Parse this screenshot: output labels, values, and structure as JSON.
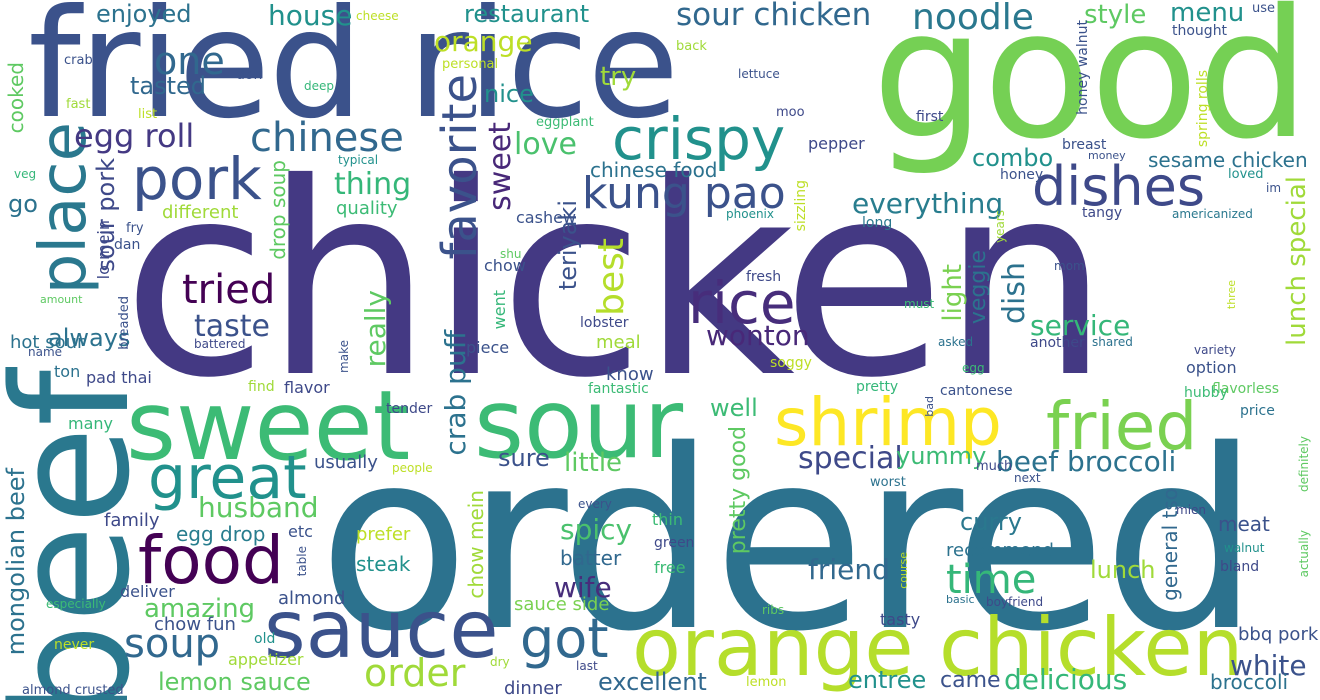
{
  "words": [
    {
      "text": "chicken",
      "color": "#443983"
    },
    {
      "text": "ordered",
      "color": "#2c728e"
    },
    {
      "text": "good",
      "color": "#75d054"
    },
    {
      "text": "fried rice",
      "color": "#3b528b"
    },
    {
      "text": "beef",
      "color": "#2a788e"
    },
    {
      "text": "sweet",
      "color": "#3cbb75"
    },
    {
      "text": "sour",
      "color": "#3cbb75"
    },
    {
      "text": "orange chicken",
      "color": "#b5de2b"
    },
    {
      "text": "sauce",
      "color": "#3b528b"
    },
    {
      "text": "shrimp",
      "color": "#fde725"
    },
    {
      "text": "fried",
      "color": "#7ad151"
    },
    {
      "text": "food",
      "color": "#440154"
    },
    {
      "text": "place",
      "color": "#2a788e"
    },
    {
      "text": "great",
      "color": "#21918c"
    },
    {
      "text": "pork",
      "color": "#3b528b"
    },
    {
      "text": "dishes",
      "color": "#3e4989"
    },
    {
      "text": "rice",
      "color": "#472d7b"
    },
    {
      "text": "crispy",
      "color": "#21918c"
    },
    {
      "text": "got",
      "color": "#31688e"
    },
    {
      "text": "kung pao",
      "color": "#3b528b"
    },
    {
      "text": "favorite",
      "color": "#3b528b"
    },
    {
      "text": "time",
      "color": "#35b779"
    },
    {
      "text": "soup",
      "color": "#31688e"
    },
    {
      "text": "order",
      "color": "#a0da39"
    },
    {
      "text": "tried",
      "color": "#440154"
    },
    {
      "text": "chinese",
      "color": "#31688e"
    },
    {
      "text": "noodle",
      "color": "#2a788e"
    },
    {
      "text": "sour chicken",
      "color": "#31688e"
    },
    {
      "text": "egg roll",
      "color": "#443983"
    },
    {
      "text": "one",
      "color": "#31688e"
    },
    {
      "text": "taste",
      "color": "#3b528b"
    },
    {
      "text": "thing",
      "color": "#35b779"
    },
    {
      "text": "best",
      "color": "#b5de2b"
    },
    {
      "text": "sweet",
      "color": "#482878"
    },
    {
      "text": "love",
      "color": "#4ac16d"
    },
    {
      "text": "service",
      "color": "#35b779"
    },
    {
      "text": "wonton",
      "color": "#482878"
    },
    {
      "text": "house",
      "color": "#21918c"
    },
    {
      "text": "restaurant",
      "color": "#21918c"
    },
    {
      "text": "orange",
      "color": "#bddf26"
    },
    {
      "text": "menu",
      "color": "#21918c"
    },
    {
      "text": "style",
      "color": "#5ec962"
    },
    {
      "text": "enjoyed",
      "color": "#2c728e"
    },
    {
      "text": "tasted",
      "color": "#31688e"
    },
    {
      "text": "try",
      "color": "#a0da39"
    },
    {
      "text": "nice",
      "color": "#21918c"
    },
    {
      "text": "everything",
      "color": "#287d8e"
    },
    {
      "text": "combo",
      "color": "#21918c"
    },
    {
      "text": "chinese food",
      "color": "#2c728e"
    },
    {
      "text": "sesame chicken",
      "color": "#2c728e"
    },
    {
      "text": "teriyaki",
      "color": "#3b528b"
    },
    {
      "text": "really",
      "color": "#5ec962"
    },
    {
      "text": "crab puff",
      "color": "#2c728e"
    },
    {
      "text": "veggie",
      "color": "#2c728e"
    },
    {
      "text": "dish",
      "color": "#2c728e"
    },
    {
      "text": "lunch special",
      "color": "#a0da39"
    },
    {
      "text": "light",
      "color": "#7ad151"
    },
    {
      "text": "mongolian beef",
      "color": "#2c728e"
    },
    {
      "text": "sour pork",
      "color": "#3e4989"
    },
    {
      "text": "cooked",
      "color": "#5ec962"
    },
    {
      "text": "always",
      "color": "#2c728e"
    },
    {
      "text": "hot sour",
      "color": "#2c728e"
    },
    {
      "text": "drop soup",
      "color": "#5ec962"
    },
    {
      "text": "lo mein",
      "color": "#3e4989"
    },
    {
      "text": "different",
      "color": "#a0da39"
    },
    {
      "text": "quality",
      "color": "#3cbb75"
    },
    {
      "text": "go",
      "color": "#2c728e"
    },
    {
      "text": "special",
      "color": "#3e4989"
    },
    {
      "text": "beef broccoli",
      "color": "#2c728e"
    },
    {
      "text": "well",
      "color": "#3cbb75"
    },
    {
      "text": "yummy",
      "color": "#3cbb75"
    },
    {
      "text": "little",
      "color": "#5ec962"
    },
    {
      "text": "sure",
      "color": "#3b528b"
    },
    {
      "text": "usually",
      "color": "#3b528b"
    },
    {
      "text": "husband",
      "color": "#5ec962"
    },
    {
      "text": "egg drop",
      "color": "#287d8e"
    },
    {
      "text": "amazing",
      "color": "#5ec962"
    },
    {
      "text": "spicy",
      "color": "#4ac16d"
    },
    {
      "text": "batter",
      "color": "#31688e"
    },
    {
      "text": "wife",
      "color": "#472d7b"
    },
    {
      "text": "chow mein",
      "color": "#a0da39"
    },
    {
      "text": "pretty good",
      "color": "#5ec962"
    },
    {
      "text": "friend",
      "color": "#31688e"
    },
    {
      "text": "curry",
      "color": "#2a788e"
    },
    {
      "text": "recommend",
      "color": "#2c728e"
    },
    {
      "text": "lunch",
      "color": "#a0da39"
    },
    {
      "text": "general tso",
      "color": "#31688e"
    },
    {
      "text": "meat",
      "color": "#3b528b"
    },
    {
      "text": "white",
      "color": "#3b528b"
    },
    {
      "text": "delicious",
      "color": "#35b779"
    },
    {
      "text": "bbq pork",
      "color": "#3b528b"
    },
    {
      "text": "broccoli",
      "color": "#2c728e"
    },
    {
      "text": "came",
      "color": "#3b528b"
    },
    {
      "text": "entree",
      "color": "#21918c"
    },
    {
      "text": "excellent",
      "color": "#31688e"
    },
    {
      "text": "lemon sauce",
      "color": "#5ec962"
    },
    {
      "text": "dinner",
      "color": "#3e4989"
    },
    {
      "text": "sauce side",
      "color": "#7ad151"
    },
    {
      "text": "appetizer",
      "color": "#a0da39"
    },
    {
      "text": "chow fun",
      "color": "#3b528b"
    },
    {
      "text": "almond",
      "color": "#3b528b"
    },
    {
      "text": "deliver",
      "color": "#3b528b"
    },
    {
      "text": "steak",
      "color": "#21918c"
    },
    {
      "text": "prefer",
      "color": "#bddf26"
    },
    {
      "text": "etc",
      "color": "#3b528b"
    },
    {
      "text": "family",
      "color": "#3e4989"
    },
    {
      "text": "many",
      "color": "#35b779"
    },
    {
      "text": "pad thai",
      "color": "#3e4989"
    },
    {
      "text": "ton",
      "color": "#2c728e"
    },
    {
      "text": "flavor",
      "color": "#3e4989"
    },
    {
      "text": "find",
      "color": "#a0da39"
    },
    {
      "text": "tender",
      "color": "#3e4989"
    },
    {
      "text": "fantastic",
      "color": "#3cbb75"
    },
    {
      "text": "meal",
      "color": "#a0da39"
    },
    {
      "text": "know",
      "color": "#3b528b"
    },
    {
      "text": "piece",
      "color": "#3b528b"
    },
    {
      "text": "went",
      "color": "#35b779"
    },
    {
      "text": "chow",
      "color": "#3b528b"
    },
    {
      "text": "cashew",
      "color": "#3b528b"
    },
    {
      "text": "lobster",
      "color": "#3e4989"
    },
    {
      "text": "fresh",
      "color": "#3e4989"
    },
    {
      "text": "must",
      "color": "#3cbb75"
    },
    {
      "text": "asked",
      "color": "#2c728e"
    },
    {
      "text": "soggy",
      "color": "#bddf26"
    },
    {
      "text": "pretty",
      "color": "#35b779"
    },
    {
      "text": "cantonese",
      "color": "#3b528b"
    },
    {
      "text": "another",
      "color": "#3e4989"
    },
    {
      "text": "shared",
      "color": "#2c728e"
    },
    {
      "text": "option",
      "color": "#3b528b"
    },
    {
      "text": "variety",
      "color": "#3e4989"
    },
    {
      "text": "flavorless",
      "color": "#5ec962"
    },
    {
      "text": "hubby",
      "color": "#3cbb75"
    },
    {
      "text": "price",
      "color": "#2c728e"
    },
    {
      "text": "mom",
      "color": "#3b528b"
    },
    {
      "text": "honey walnut",
      "color": "#3b528b"
    },
    {
      "text": "spring rolls",
      "color": "#bddf26"
    },
    {
      "text": "breast",
      "color": "#3b528b"
    },
    {
      "text": "money",
      "color": "#3b528b"
    },
    {
      "text": "loved",
      "color": "#21918c"
    },
    {
      "text": "im",
      "color": "#3b528b"
    },
    {
      "text": "americanized",
      "color": "#2a788e"
    },
    {
      "text": "tangy",
      "color": "#3e4989"
    },
    {
      "text": "honey",
      "color": "#3b528b"
    },
    {
      "text": "years",
      "color": "#a0da39"
    },
    {
      "text": "long",
      "color": "#2a788e"
    },
    {
      "text": "sizzling",
      "color": "#bddf26"
    },
    {
      "text": "phoenix",
      "color": "#21918c"
    },
    {
      "text": "pepper",
      "color": "#3e4989"
    },
    {
      "text": "first",
      "color": "#3e4989"
    },
    {
      "text": "moo",
      "color": "#3e4989"
    },
    {
      "text": "lettuce",
      "color": "#3b528b"
    },
    {
      "text": "thought",
      "color": "#3b528b"
    },
    {
      "text": "use",
      "color": "#3b528b"
    },
    {
      "text": "back",
      "color": "#a0da39"
    },
    {
      "text": "cheese",
      "color": "#bddf26"
    },
    {
      "text": "personal",
      "color": "#bddf26"
    },
    {
      "text": "don",
      "color": "#3b528b"
    },
    {
      "text": "crab",
      "color": "#3b528b"
    },
    {
      "text": "deep",
      "color": "#35b779"
    },
    {
      "text": "fast",
      "color": "#a0da39"
    },
    {
      "text": "list",
      "color": "#bddf26"
    },
    {
      "text": "eggplant",
      "color": "#3cbb75"
    },
    {
      "text": "typical",
      "color": "#21918c"
    },
    {
      "text": "veg",
      "color": "#35b779"
    },
    {
      "text": "fry",
      "color": "#3b528b"
    },
    {
      "text": "dan",
      "color": "#3b528b"
    },
    {
      "text": "shu",
      "color": "#5ec962"
    },
    {
      "text": "amount",
      "color": "#5ec962"
    },
    {
      "text": "name",
      "color": "#3b528b"
    },
    {
      "text": "breaded",
      "color": "#3b528b"
    },
    {
      "text": "battered",
      "color": "#3e4989"
    },
    {
      "text": "make",
      "color": "#3b528b"
    },
    {
      "text": "people",
      "color": "#bddf26"
    },
    {
      "text": "every",
      "color": "#3b528b"
    },
    {
      "text": "green",
      "color": "#3e4989"
    },
    {
      "text": "thin",
      "color": "#3cbb75"
    },
    {
      "text": "free",
      "color": "#3cbb75"
    },
    {
      "text": "table",
      "color": "#3b528b"
    },
    {
      "text": "especially",
      "color": "#3cbb75"
    },
    {
      "text": "never",
      "color": "#bddf26"
    },
    {
      "text": "old",
      "color": "#21918c"
    },
    {
      "text": "ribs",
      "color": "#5ec962"
    },
    {
      "text": "course",
      "color": "#bddf26"
    },
    {
      "text": "tasty",
      "color": "#3e4989"
    },
    {
      "text": "dry",
      "color": "#a0da39"
    },
    {
      "text": "last",
      "color": "#3e4989"
    },
    {
      "text": "lemon",
      "color": "#bddf26"
    },
    {
      "text": "almond crusted",
      "color": "#3b528b"
    },
    {
      "text": "basic",
      "color": "#2c728e"
    },
    {
      "text": "boyfriend",
      "color": "#3e4989"
    },
    {
      "text": "walnut",
      "color": "#21918c"
    },
    {
      "text": "bland",
      "color": "#3e4989"
    },
    {
      "text": "actually",
      "color": "#5ec962"
    },
    {
      "text": "definitely",
      "color": "#5ec962"
    },
    {
      "text": "mien",
      "color": "#3e4989"
    },
    {
      "text": "next",
      "color": "#3b528b"
    },
    {
      "text": "much",
      "color": "#3e4989"
    },
    {
      "text": "worst",
      "color": "#2c728e"
    },
    {
      "text": "bad",
      "color": "#3b528b"
    },
    {
      "text": "egg",
      "color": "#3cbb75"
    },
    {
      "text": "three",
      "color": "#bddf26"
    }
  ]
}
